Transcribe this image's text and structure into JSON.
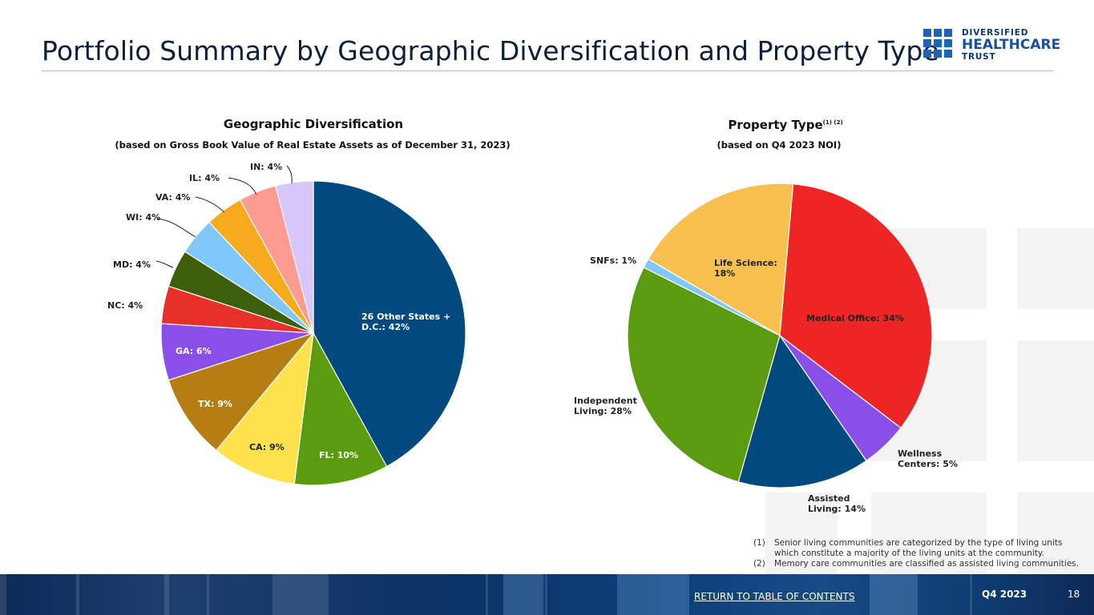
{
  "page": {
    "title": "Portfolio Summary by Geographic Diversification and Property Type",
    "logo": {
      "line1": "DIVERSIFIED",
      "line2": "HEALTHCARE",
      "line3": "TRUST"
    },
    "footer": {
      "link": "RETURN TO TABLE OF CONTENTS",
      "quarter": "Q4 2023",
      "page_number": "18"
    },
    "footnotes": [
      {
        "num": "(1)",
        "text": "Senior living communities are categorized by the type of living units which constitute a majority of the living units at the community."
      },
      {
        "num": "(2)",
        "text": "Memory care communities are classified as assisted living communities."
      }
    ]
  },
  "chart_data": [
    {
      "type": "pie",
      "title": "Geographic Diversification",
      "subtitle": "(based on Gross Book Value of Real Estate Assets as of December 31, 2023)",
      "start_angle_deg": 0,
      "direction": "clockwise",
      "slices": [
        {
          "label": "26 Other States + D.C.",
          "value": 42,
          "display": "26 Other States + D.C.: 42%",
          "color": "#004a7f"
        },
        {
          "label": "FL",
          "value": 10,
          "display": "FL: 10%",
          "color": "#5b9b0f"
        },
        {
          "label": "CA",
          "value": 9,
          "display": "CA: 9%",
          "color": "#fde24c"
        },
        {
          "label": "TX",
          "value": 9,
          "display": "TX: 9%",
          "color": "#b67d13"
        },
        {
          "label": "GA",
          "value": 6,
          "display": "GA: 6%",
          "color": "#8b4fe9"
        },
        {
          "label": "NC",
          "value": 4,
          "display": "NC: 4%",
          "color": "#e8302b"
        },
        {
          "label": "MD",
          "value": 4,
          "display": "MD: 4%",
          "color": "#3d5f0b"
        },
        {
          "label": "WI",
          "value": 4,
          "display": "WI: 4%",
          "color": "#80c7fa"
        },
        {
          "label": "VA",
          "value": 4,
          "display": "VA: 4%",
          "color": "#f6ab1e"
        },
        {
          "label": "IL",
          "value": 4,
          "display": "IL: 4%",
          "color": "#fd9b93"
        },
        {
          "label": "IN",
          "value": 4,
          "display": "IN: 4%",
          "color": "#d9c6f9"
        }
      ]
    },
    {
      "type": "pie",
      "title": "Property Type",
      "title_superscript": "(1) (2)",
      "subtitle": "(based on Q4 2023 NOI)",
      "start_angle_deg": 5,
      "direction": "clockwise",
      "slices": [
        {
          "label": "Medical Office",
          "value": 34,
          "display": "Medical Office: 34%",
          "color": "#ed2524"
        },
        {
          "label": "Wellness Centers",
          "value": 5,
          "display": "Wellness Centers: 5%",
          "color": "#8b4fe9"
        },
        {
          "label": "Assisted Living",
          "value": 14,
          "display": "Assisted Living: 14%",
          "color": "#004a7f"
        },
        {
          "label": "Independent Living",
          "value": 28,
          "display": "Independent Living: 28%",
          "color": "#5b9b0f"
        },
        {
          "label": "SNFs",
          "value": 1,
          "display": "SNFs: 1%",
          "color": "#80c7fa"
        },
        {
          "label": "Life Science",
          "value": 18,
          "display": "Life Science: 18%",
          "color": "#f8c04f"
        }
      ]
    }
  ]
}
